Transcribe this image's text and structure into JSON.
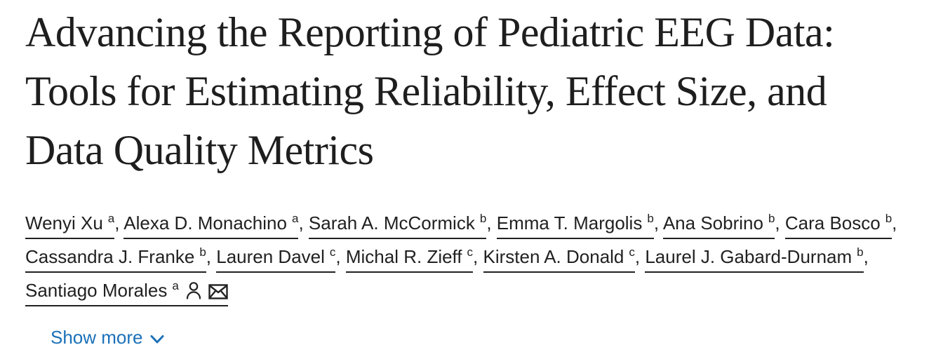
{
  "article": {
    "title": "Advancing the Reporting of Pediatric EEG Data: Tools for Estimating Reliability, Effect Size, and Data Quality Metrics",
    "authors": [
      {
        "name": "Wenyi Xu",
        "affiliation_mark": "a",
        "corresponding": false
      },
      {
        "name": "Alexa D. Monachino",
        "affiliation_mark": "a",
        "corresponding": false
      },
      {
        "name": "Sarah A. McCormick",
        "affiliation_mark": "b",
        "corresponding": false
      },
      {
        "name": "Emma T. Margolis",
        "affiliation_mark": "b",
        "corresponding": false
      },
      {
        "name": "Ana Sobrino",
        "affiliation_mark": "b",
        "corresponding": false
      },
      {
        "name": "Cara Bosco",
        "affiliation_mark": "b",
        "corresponding": false
      },
      {
        "name": "Cassandra J. Franke",
        "affiliation_mark": "b",
        "corresponding": false
      },
      {
        "name": "Lauren Davel",
        "affiliation_mark": "c",
        "corresponding": false
      },
      {
        "name": "Michal R. Zieff",
        "affiliation_mark": "c",
        "corresponding": false
      },
      {
        "name": "Kirsten A. Donald",
        "affiliation_mark": "c",
        "corresponding": false
      },
      {
        "name": "Laurel J. Gabard-Durnam",
        "affiliation_mark": "b",
        "corresponding": false
      },
      {
        "name": "Santiago Morales",
        "affiliation_mark": "a",
        "corresponding": true
      }
    ],
    "author_separator": ", ",
    "show_more_label": "Show more",
    "icons": {
      "corresponding_author": "person-icon",
      "email": "envelope-icon",
      "show_more": "chevron-down-icon"
    },
    "colors": {
      "title_text": "#1e1e1e",
      "author_text": "#212121",
      "underline": "#212121",
      "link_blue": "#1b71b8",
      "background": "#ffffff"
    }
  }
}
